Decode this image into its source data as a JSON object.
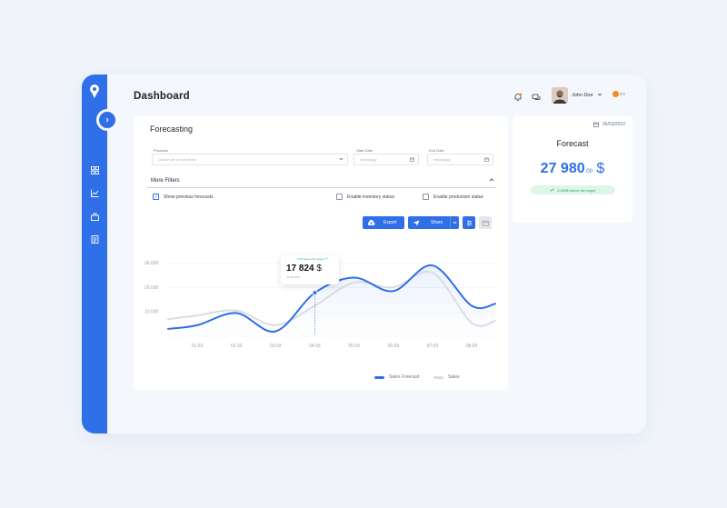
{
  "header": {
    "title": "Dashboard"
  },
  "user": {
    "name": "John Doe",
    "language": "EN"
  },
  "forecasting": {
    "title": "Forecasting",
    "fields": {
      "products": {
        "label": "Products",
        "placeholder": "Choose one or more items"
      },
      "start_date": {
        "label": "Start Date",
        "placeholder": "mm/dd/yyyy"
      },
      "end_date": {
        "label": "End Date",
        "placeholder": "mm/dd/yyyy"
      }
    },
    "more_filters": "More Filters",
    "checks": [
      {
        "label": "Show previous forecasts",
        "checked": true
      },
      {
        "label": "Enable inventory status",
        "checked": false
      },
      {
        "label": "Enable production status",
        "checked": false
      }
    ],
    "export_label": "Export",
    "share_label": "Share",
    "tooltip": {
      "note": "2.5% above the target",
      "value": "17 824",
      "currency": "$",
      "date": "04.03.2022"
    }
  },
  "side_forecast": {
    "date": "06/03/2022",
    "title": "Forecast",
    "value_int": "27 980",
    "value_dec": ".00",
    "currency": "$",
    "badge": "4.000$ above the target"
  },
  "icons": [
    "logo-icon",
    "chevron-right-icon",
    "dashboard-icon",
    "chart-icon",
    "inventory-icon",
    "reports-icon",
    "bell-icon",
    "messages-icon",
    "calendar-icon",
    "cloud-upload-icon",
    "send-icon",
    "filter-icon",
    "trend-up-icon"
  ],
  "colors": {
    "accent": "#2f6fe8",
    "sales": "#d9dce2",
    "positive": "#22a85a"
  },
  "chart_data": {
    "type": "line",
    "x": [
      "01.03",
      "02.03",
      "03.03",
      "04.03",
      "05.03",
      "06.03",
      "07.03",
      "08.03"
    ],
    "yticks": [
      "10.000",
      "20.000",
      "30.000"
    ],
    "ylim": [
      0,
      32000
    ],
    "series": [
      {
        "name": "Sales Forecast",
        "color": "#2f6fe8",
        "values": [
          4500,
          9500,
          2000,
          17800,
          24000,
          18500,
          29000,
          12500
        ]
      },
      {
        "name": "Sales",
        "color": "#d9dce2",
        "values": [
          8500,
          10500,
          4500,
          12500,
          22000,
          20000,
          26000,
          5500
        ]
      }
    ],
    "legend": "bottom-center"
  }
}
